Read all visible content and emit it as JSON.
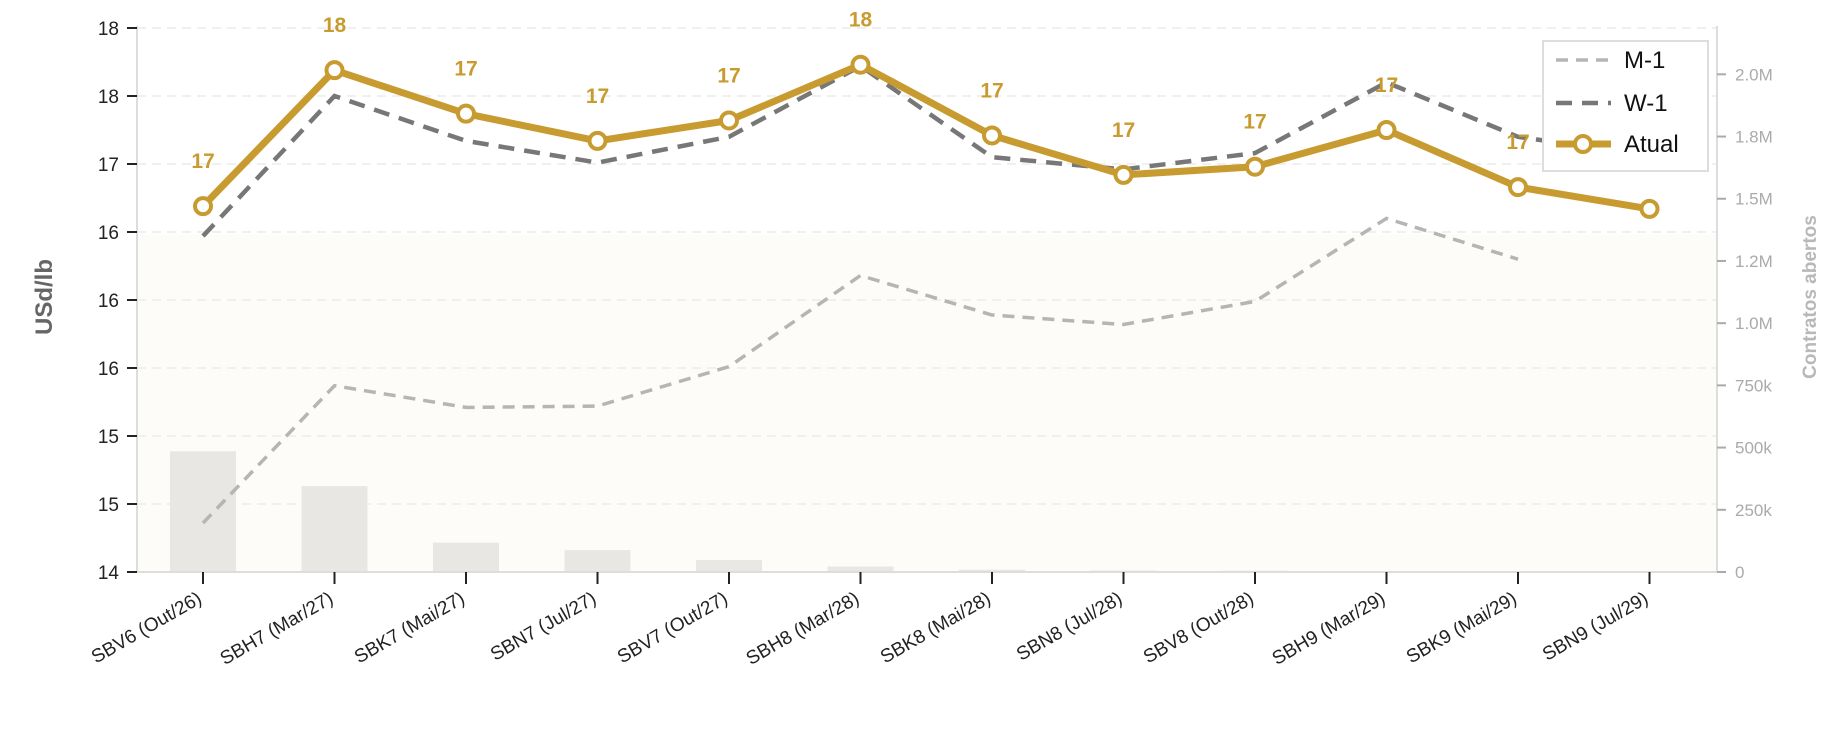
{
  "chart_data": {
    "type": "line",
    "categories": [
      "SBV6 (Out/26)",
      "SBH7 (Mar/27)",
      "SBK7 (Mai/27)",
      "SBN7 (Jul/27)",
      "SBV7 (Out/27)",
      "SBH8 (Mar/28)",
      "SBK8 (Mai/28)",
      "SBN8 (Jul/28)",
      "SBV8 (Out/28)",
      "SBH9 (Mar/29)",
      "SBK9 (Mai/29)",
      "SBN9 (Jul/29)"
    ],
    "ylabel": "USd/lb",
    "y2label": "Contratos abertos",
    "ylim": [
      14,
      18
    ],
    "y2lim": [
      0,
      2150000
    ],
    "y_ticks": [
      14,
      14.5,
      15,
      15.5,
      16,
      16.5,
      17,
      17.5,
      18
    ],
    "y_tick_labels": [
      "14",
      "15",
      "15",
      "16",
      "16",
      "16",
      "17",
      "18",
      "18"
    ],
    "y2_ticks": [
      0,
      250000,
      500000,
      750000,
      1000000,
      1250000,
      1500000,
      1750000,
      2000000
    ],
    "y2_tick_labels": [
      "0",
      "250k",
      "500k",
      "750k",
      "1.0M",
      "1.2M",
      "1.5M",
      "1.8M",
      "2.0M"
    ],
    "grid": true,
    "legend_position": "top-right",
    "shaded_band_max": 16.48,
    "series": [
      {
        "name": "M-1",
        "style": "dashed",
        "color": "#b5b5b5",
        "values": [
          14.36,
          15.37,
          15.21,
          15.22,
          15.51,
          16.18,
          15.89,
          15.82,
          15.99,
          16.6,
          16.3,
          null
        ]
      },
      {
        "name": "W-1",
        "style": "dashed",
        "color": "#777777",
        "values": [
          16.47,
          17.5,
          17.17,
          17.01,
          17.2,
          17.72,
          17.05,
          16.96,
          17.08,
          17.6,
          17.2,
          17.06
        ]
      },
      {
        "name": "Atual",
        "style": "solid-markers",
        "color": "#c89b30",
        "values": [
          16.69,
          17.69,
          17.37,
          17.17,
          17.32,
          17.73,
          17.21,
          16.92,
          16.98,
          17.25,
          16.83,
          16.67
        ],
        "data_labels": [
          "17",
          "18",
          "17",
          "17",
          "17",
          "18",
          "17",
          "17",
          "17",
          "17",
          "17",
          "17"
        ]
      }
    ],
    "open_interest": {
      "name": "Contratos abertos",
      "color": "#e8e7e3",
      "values": [
        485000,
        345000,
        118000,
        88000,
        48000,
        22000,
        9000,
        6000,
        5000,
        2000,
        1000,
        500
      ]
    }
  }
}
